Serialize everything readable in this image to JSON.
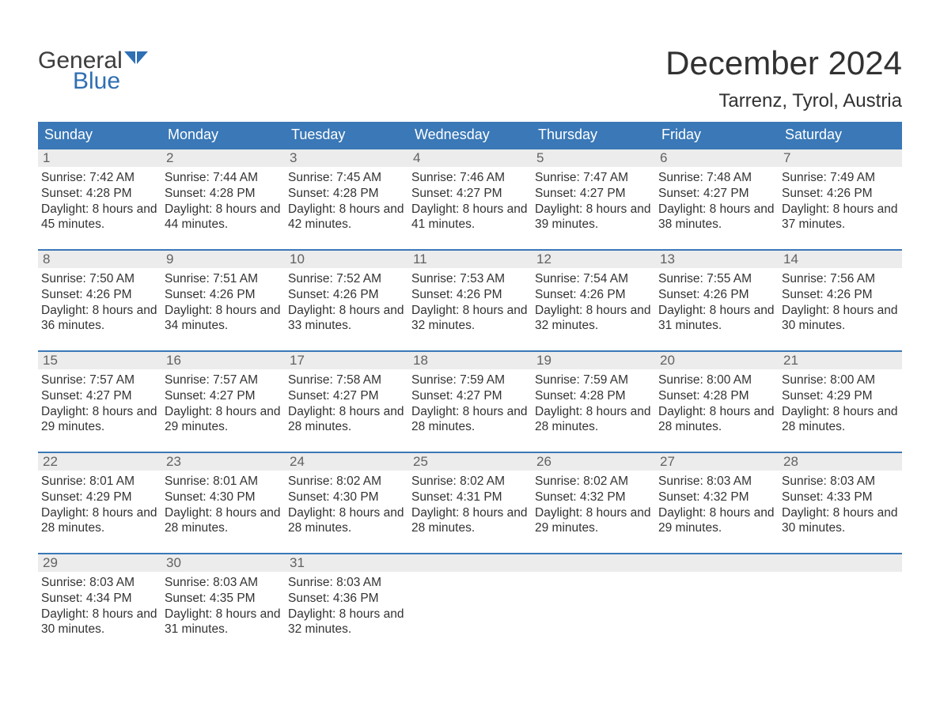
{
  "logo": {
    "text1": "General",
    "text2": "Blue"
  },
  "title": "December 2024",
  "location": "Tarrenz, Tyrol, Austria",
  "colors": {
    "header_bg": "#3a78b7",
    "header_text": "#ffffff",
    "daynum_bg": "#ececec",
    "daynum_text": "#626262",
    "body_text": "#333333",
    "border": "#3a78b7",
    "logo_gray": "#3d3d3d",
    "logo_blue": "#2f6fb3"
  },
  "day_labels": [
    "Sunday",
    "Monday",
    "Tuesday",
    "Wednesday",
    "Thursday",
    "Friday",
    "Saturday"
  ],
  "weeks": [
    [
      {
        "n": "1",
        "sr": "7:42 AM",
        "ss": "4:28 PM",
        "dl": "8 hours and 45 minutes."
      },
      {
        "n": "2",
        "sr": "7:44 AM",
        "ss": "4:28 PM",
        "dl": "8 hours and 44 minutes."
      },
      {
        "n": "3",
        "sr": "7:45 AM",
        "ss": "4:28 PM",
        "dl": "8 hours and 42 minutes."
      },
      {
        "n": "4",
        "sr": "7:46 AM",
        "ss": "4:27 PM",
        "dl": "8 hours and 41 minutes."
      },
      {
        "n": "5",
        "sr": "7:47 AM",
        "ss": "4:27 PM",
        "dl": "8 hours and 39 minutes."
      },
      {
        "n": "6",
        "sr": "7:48 AM",
        "ss": "4:27 PM",
        "dl": "8 hours and 38 minutes."
      },
      {
        "n": "7",
        "sr": "7:49 AM",
        "ss": "4:26 PM",
        "dl": "8 hours and 37 minutes."
      }
    ],
    [
      {
        "n": "8",
        "sr": "7:50 AM",
        "ss": "4:26 PM",
        "dl": "8 hours and 36 minutes."
      },
      {
        "n": "9",
        "sr": "7:51 AM",
        "ss": "4:26 PM",
        "dl": "8 hours and 34 minutes."
      },
      {
        "n": "10",
        "sr": "7:52 AM",
        "ss": "4:26 PM",
        "dl": "8 hours and 33 minutes."
      },
      {
        "n": "11",
        "sr": "7:53 AM",
        "ss": "4:26 PM",
        "dl": "8 hours and 32 minutes."
      },
      {
        "n": "12",
        "sr": "7:54 AM",
        "ss": "4:26 PM",
        "dl": "8 hours and 32 minutes."
      },
      {
        "n": "13",
        "sr": "7:55 AM",
        "ss": "4:26 PM",
        "dl": "8 hours and 31 minutes."
      },
      {
        "n": "14",
        "sr": "7:56 AM",
        "ss": "4:26 PM",
        "dl": "8 hours and 30 minutes."
      }
    ],
    [
      {
        "n": "15",
        "sr": "7:57 AM",
        "ss": "4:27 PM",
        "dl": "8 hours and 29 minutes."
      },
      {
        "n": "16",
        "sr": "7:57 AM",
        "ss": "4:27 PM",
        "dl": "8 hours and 29 minutes."
      },
      {
        "n": "17",
        "sr": "7:58 AM",
        "ss": "4:27 PM",
        "dl": "8 hours and 28 minutes."
      },
      {
        "n": "18",
        "sr": "7:59 AM",
        "ss": "4:27 PM",
        "dl": "8 hours and 28 minutes."
      },
      {
        "n": "19",
        "sr": "7:59 AM",
        "ss": "4:28 PM",
        "dl": "8 hours and 28 minutes."
      },
      {
        "n": "20",
        "sr": "8:00 AM",
        "ss": "4:28 PM",
        "dl": "8 hours and 28 minutes."
      },
      {
        "n": "21",
        "sr": "8:00 AM",
        "ss": "4:29 PM",
        "dl": "8 hours and 28 minutes."
      }
    ],
    [
      {
        "n": "22",
        "sr": "8:01 AM",
        "ss": "4:29 PM",
        "dl": "8 hours and 28 minutes."
      },
      {
        "n": "23",
        "sr": "8:01 AM",
        "ss": "4:30 PM",
        "dl": "8 hours and 28 minutes."
      },
      {
        "n": "24",
        "sr": "8:02 AM",
        "ss": "4:30 PM",
        "dl": "8 hours and 28 minutes."
      },
      {
        "n": "25",
        "sr": "8:02 AM",
        "ss": "4:31 PM",
        "dl": "8 hours and 28 minutes."
      },
      {
        "n": "26",
        "sr": "8:02 AM",
        "ss": "4:32 PM",
        "dl": "8 hours and 29 minutes."
      },
      {
        "n": "27",
        "sr": "8:03 AM",
        "ss": "4:32 PM",
        "dl": "8 hours and 29 minutes."
      },
      {
        "n": "28",
        "sr": "8:03 AM",
        "ss": "4:33 PM",
        "dl": "8 hours and 30 minutes."
      }
    ],
    [
      {
        "n": "29",
        "sr": "8:03 AM",
        "ss": "4:34 PM",
        "dl": "8 hours and 30 minutes."
      },
      {
        "n": "30",
        "sr": "8:03 AM",
        "ss": "4:35 PM",
        "dl": "8 hours and 31 minutes."
      },
      {
        "n": "31",
        "sr": "8:03 AM",
        "ss": "4:36 PM",
        "dl": "8 hours and 32 minutes."
      },
      {
        "empty": true
      },
      {
        "empty": true
      },
      {
        "empty": true
      },
      {
        "empty": true
      }
    ]
  ],
  "labels": {
    "sunrise_prefix": "Sunrise: ",
    "sunset_prefix": "Sunset: ",
    "daylight_prefix": "Daylight: "
  }
}
